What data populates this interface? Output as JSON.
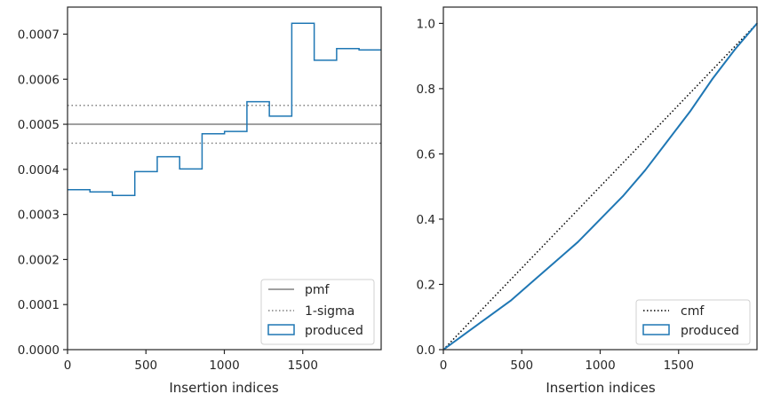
{
  "colors": {
    "pmf": "#808080",
    "sigma": "#808080",
    "produced": "#1f77b4",
    "cmf": "#000000",
    "axes": "#262626"
  },
  "chart_data": [
    {
      "type": "step",
      "xlabel": "Insertion indices",
      "ylabel": "",
      "title": "",
      "xlim": [
        0,
        2000
      ],
      "ylim": [
        0,
        0.00076
      ],
      "xticks": [
        0,
        500,
        1000,
        1500
      ],
      "xtick_labels": [
        "0",
        "500",
        "1000",
        "1500"
      ],
      "yticks": [
        0,
        0.0001,
        0.0002,
        0.0003,
        0.0004,
        0.0005,
        0.0006,
        0.0007
      ],
      "ytick_labels": [
        "0.0000",
        "0.0001",
        "0.0002",
        "0.0003",
        "0.0004",
        "0.0005",
        "0.0006",
        "0.0007"
      ],
      "legend_position": "lower-right",
      "legend": [
        "pmf",
        "1-sigma",
        "produced"
      ],
      "pmf": 0.0005,
      "sigma_band": [
        0.000458,
        0.000542
      ],
      "produced": {
        "bin_edges": [
          0,
          143,
          286,
          429,
          572,
          715,
          858,
          1001,
          1144,
          1287,
          1430,
          1573,
          1716,
          1859,
          2000
        ],
        "values": [
          0.000355,
          0.00035,
          0.000342,
          0.000395,
          0.000428,
          0.000401,
          0.000479,
          0.000484,
          0.00055,
          0.000518,
          0.000724,
          0.000642,
          0.000668,
          0.000665
        ]
      }
    },
    {
      "type": "line",
      "xlabel": "Insertion indices",
      "ylabel": "",
      "title": "",
      "xlim": [
        0,
        2000
      ],
      "ylim": [
        0,
        1.05
      ],
      "xticks": [
        0,
        500,
        1000,
        1500
      ],
      "xtick_labels": [
        "0",
        "500",
        "1000",
        "1500"
      ],
      "yticks": [
        0,
        0.2,
        0.4,
        0.6,
        0.8,
        1.0
      ],
      "ytick_labels": [
        "0.0",
        "0.2",
        "0.4",
        "0.6",
        "0.8",
        "1.0"
      ],
      "legend_position": "lower-right",
      "legend": [
        "cmf",
        "produced"
      ],
      "cmf": {
        "x": [
          0,
          2000
        ],
        "y": [
          0,
          1.0
        ]
      },
      "produced": {
        "x": [
          0,
          143,
          286,
          429,
          572,
          715,
          858,
          1001,
          1144,
          1287,
          1430,
          1573,
          1716,
          1859,
          2000
        ],
        "y": [
          0,
          0.05,
          0.1,
          0.15,
          0.21,
          0.27,
          0.33,
          0.4,
          0.47,
          0.55,
          0.64,
          0.73,
          0.83,
          0.92,
          1.0
        ]
      }
    }
  ]
}
